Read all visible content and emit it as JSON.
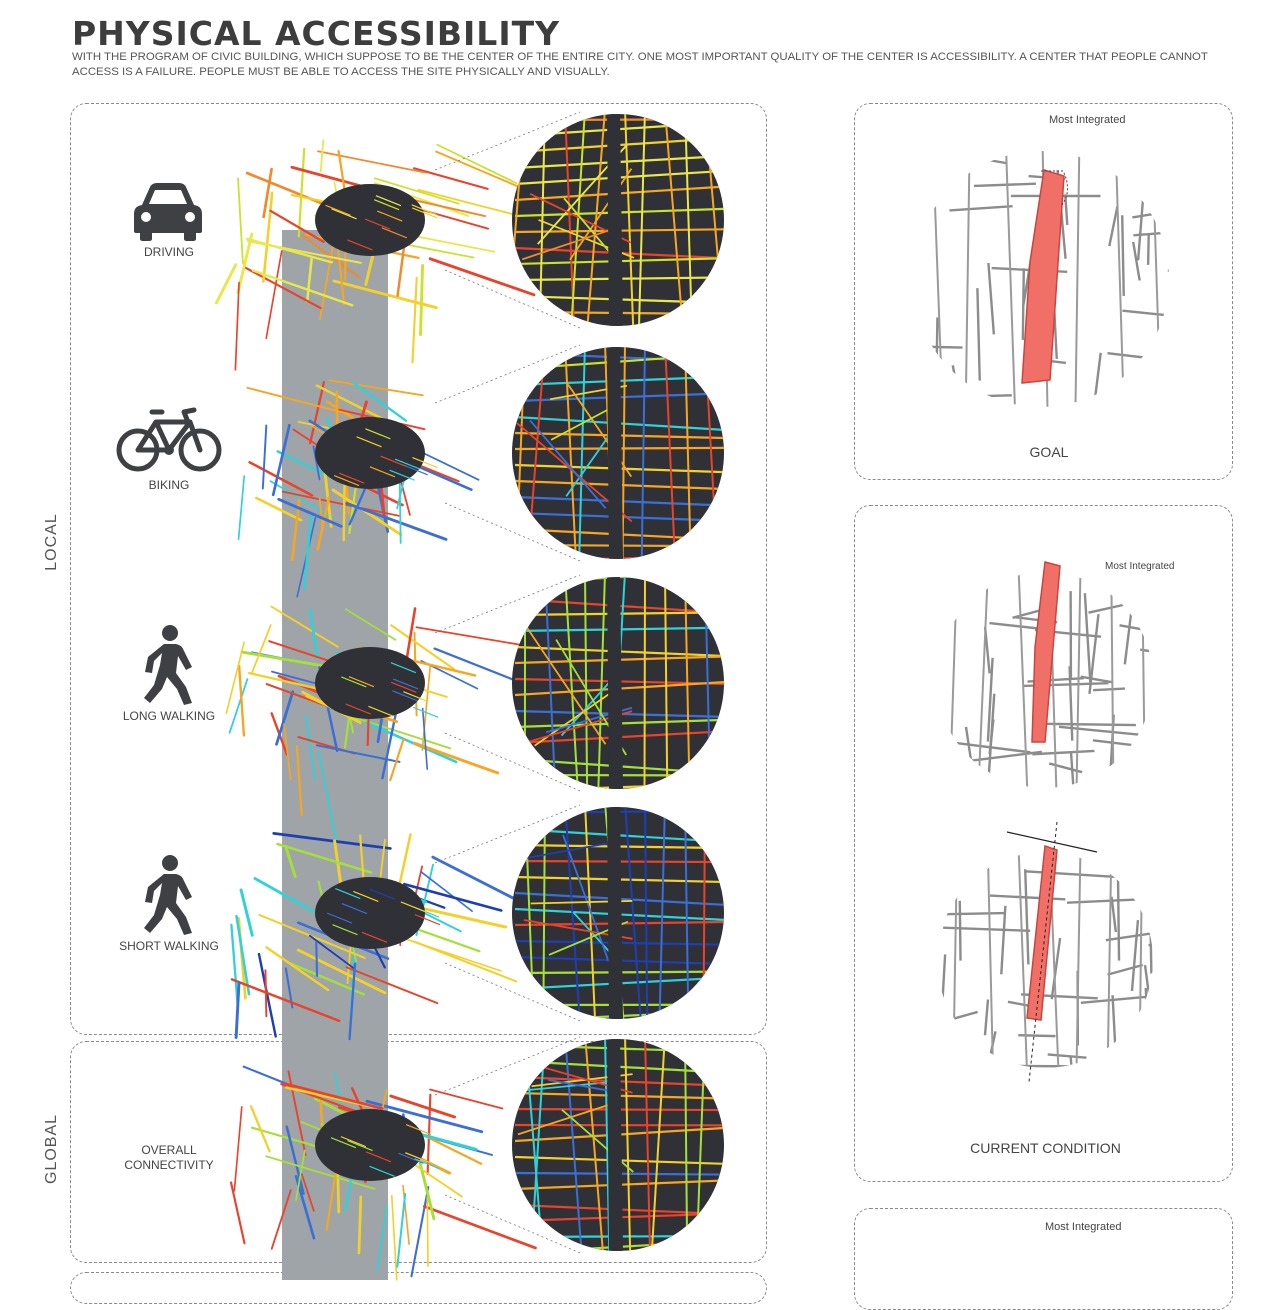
{
  "header": {
    "title": "PHYSICAL ACCESSIBILITY",
    "subtitle": "WITH THE PROGRAM OF CIVIC BUILDING, WHICH SUPPOSE TO BE THE CENTER OF THE ENTIRE CITY. ONE MOST IMPORTANT QUALITY OF THE CENTER IS ACCESSIBILITY. A CENTER THAT PEOPLE CANNOT ACCESS IS A FAILURE. PEOPLE MUST BE ABLE TO ACCESS THE SITE PHYSICALLY AND VISUALLY."
  },
  "sections": {
    "local_label": "LOCAL",
    "global_label": "GLOBAL"
  },
  "modes": [
    {
      "label": "DRIVING",
      "icon": "car-icon"
    },
    {
      "label": "BIKING",
      "icon": "bicycle-icon"
    },
    {
      "label": "LONG WALKING",
      "icon": "pedestrian-icon"
    },
    {
      "label": "SHORT WALKING",
      "icon": "pedestrian-icon"
    }
  ],
  "global_mode": {
    "label_line1": "OVERALL",
    "label_line2": "CONNECTIVITY"
  },
  "right_panels": {
    "goal": {
      "caption": "GOAL",
      "most_integrated": "Most Integrated"
    },
    "current": {
      "caption": "CURRENT CONDITION",
      "most_integrated": "Most Integrated"
    },
    "bottom": {
      "most_integrated": "Most Integrated"
    }
  },
  "colors": {
    "network_dark": "#2f3136",
    "column_gray": "#9ea4a7",
    "highlight_red": "#f07068",
    "icon_dark": "#3e4043"
  }
}
